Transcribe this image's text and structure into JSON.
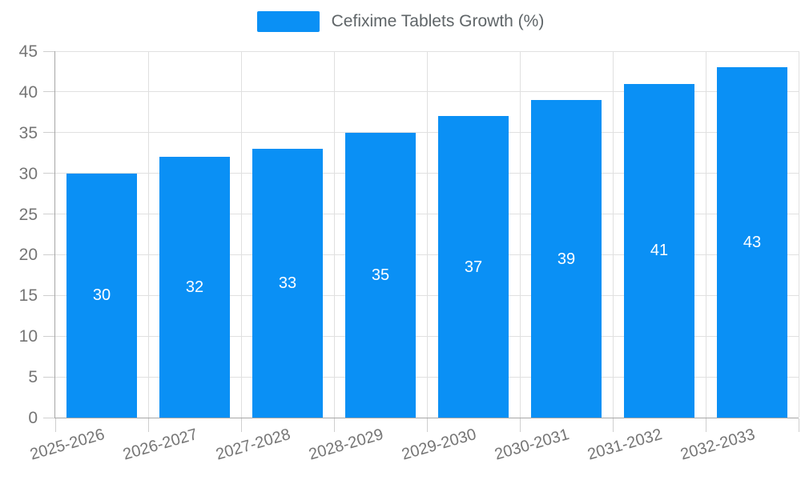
{
  "legend": {
    "label": "Cefixime Tablets Growth (%)"
  },
  "chart_data": {
    "type": "bar",
    "title": "Cefixime Tablets Growth (%)",
    "categories": [
      "2025-2026",
      "2026-2027",
      "2027-2028",
      "2028-2029",
      "2029-2030",
      "2030-2031",
      "2031-2032",
      "2032-2033"
    ],
    "values": [
      30,
      32,
      33,
      35,
      37,
      39,
      41,
      43
    ],
    "series": [
      {
        "name": "Cefixime Tablets Growth (%)",
        "values": [
          30,
          32,
          33,
          35,
          37,
          39,
          41,
          43
        ]
      }
    ],
    "xlabel": "",
    "ylabel": "",
    "ylim": [
      0,
      45
    ],
    "yticks": [
      0,
      5,
      10,
      15,
      20,
      25,
      30,
      35,
      40,
      45
    ],
    "grid": true,
    "legend_position": "top",
    "bar_color": "#0a90f5",
    "bar_label_color": "#ffffff",
    "axis_color": "#a6a6a6",
    "grid_color": "#e0e0e0",
    "tick_label_color": "#757575"
  }
}
